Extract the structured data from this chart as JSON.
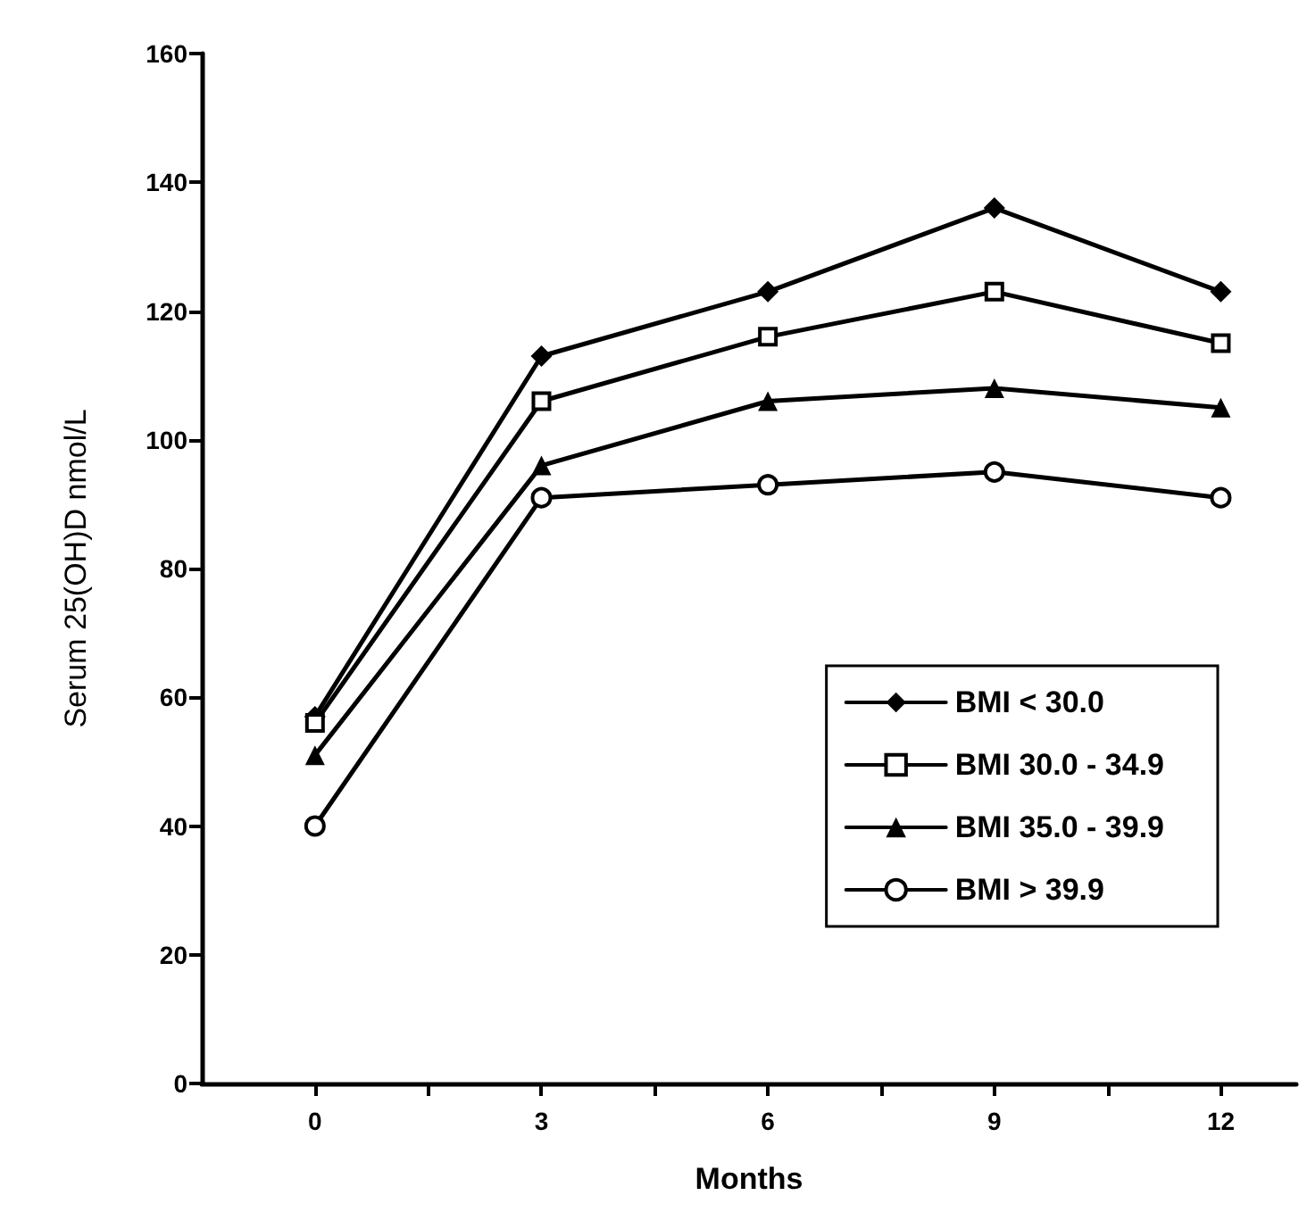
{
  "chart_data": {
    "type": "line",
    "xlabel": "Months",
    "ylabel": "Serum 25(OH)D nmol/L",
    "x": [
      0,
      3,
      6,
      9,
      12
    ],
    "xlim": [
      -1.5,
      13
    ],
    "xticks": [
      0,
      {
        "value": 1.5,
        "label": null
      },
      3,
      {
        "value": 4.5,
        "label": null
      },
      6,
      {
        "value": 7.5,
        "label": null
      },
      9,
      {
        "value": 10.5,
        "label": null
      },
      12
    ],
    "ylim": [
      0,
      160
    ],
    "yticks": [
      0,
      20,
      40,
      60,
      80,
      100,
      120,
      140,
      160
    ],
    "grid": false,
    "legend": "bottom right",
    "line_style": "solid",
    "series": [
      {
        "name": "BMI < 30.0",
        "color": "#000000",
        "marker": "diamond",
        "values": [
          57,
          113,
          123,
          136,
          123
        ]
      },
      {
        "name": "BMI 30.0 - 34.9",
        "color": "#000000",
        "marker": "square",
        "values": [
          56,
          106,
          116,
          123,
          115
        ]
      },
      {
        "name": "BMI 35.0 - 39.9",
        "color": "#000000",
        "marker": "triangle",
        "values": [
          51,
          96,
          106,
          108,
          105
        ]
      },
      {
        "name": "BMI > 39.9",
        "color": "#000000",
        "marker": "circle",
        "values": [
          40,
          91,
          93,
          95,
          91
        ]
      }
    ]
  }
}
